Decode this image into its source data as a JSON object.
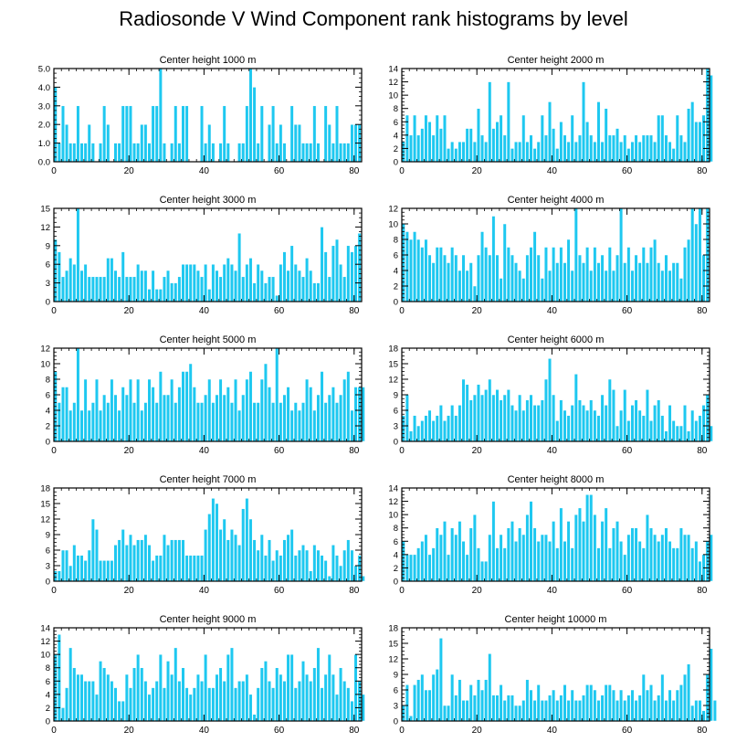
{
  "figure_title": "Radiosonde V Wind Component rank histograms by level",
  "colors": {
    "bar": "#1ec8f0",
    "bar_edge": "#ffffff",
    "axis": "#000000"
  },
  "chart_data": [
    {
      "type": "bar",
      "title": "Center height 1000 m",
      "xlabel": "",
      "ylabel": "",
      "xlim": [
        0,
        82
      ],
      "ylim": [
        0,
        5
      ],
      "x_ticks": [
        0,
        20,
        40,
        60,
        80
      ],
      "y_ticks": [
        0,
        1,
        2,
        3,
        4,
        5
      ],
      "y_tick_labels": [
        "0.0",
        "1.0",
        "2.0",
        "3.0",
        "4.0",
        "5.0"
      ],
      "values": [
        4,
        1,
        3,
        2,
        1,
        1,
        3,
        1,
        1,
        2,
        1,
        0,
        1,
        3,
        2,
        0,
        1,
        1,
        3,
        3,
        3,
        1,
        1,
        2,
        2,
        1,
        3,
        3,
        5,
        1,
        0,
        1,
        3,
        1,
        3,
        3,
        0,
        0,
        0,
        3,
        1,
        2,
        1,
        0,
        1,
        3,
        1,
        0,
        0,
        1,
        1,
        3,
        5,
        4,
        1,
        3,
        0,
        2,
        3,
        1,
        2,
        1,
        0,
        3,
        2,
        2,
        1,
        1,
        1,
        3,
        1,
        0,
        3,
        2,
        1,
        3,
        1,
        1,
        1,
        2,
        2,
        2
      ]
    },
    {
      "type": "bar",
      "title": "Center height 2000 m",
      "xlabel": "",
      "ylabel": "",
      "xlim": [
        0,
        82
      ],
      "ylim": [
        0,
        14
      ],
      "x_ticks": [
        0,
        20,
        40,
        60,
        80
      ],
      "y_ticks": [
        0,
        2,
        4,
        6,
        8,
        10,
        12,
        14
      ],
      "y_tick_labels": [
        "0",
        "2",
        "4",
        "6",
        "8",
        "10",
        "12",
        "14"
      ],
      "values": [
        3,
        7,
        4,
        7,
        4,
        5,
        7,
        6,
        4,
        7,
        5,
        7,
        2,
        3,
        2,
        3,
        3,
        5,
        5,
        3,
        8,
        4,
        3,
        12,
        5,
        6,
        7,
        4,
        12,
        2,
        3,
        3,
        7,
        3,
        4,
        2,
        3,
        7,
        4,
        9,
        5,
        2,
        6,
        4,
        3,
        7,
        3,
        4,
        12,
        6,
        4,
        3,
        9,
        3,
        8,
        4,
        4,
        5,
        3,
        4,
        2,
        3,
        4,
        3,
        4,
        4,
        4,
        3,
        7,
        7,
        4,
        3,
        2,
        7,
        4,
        3,
        8,
        9,
        6,
        6,
        7,
        14,
        13
      ]
    },
    {
      "type": "bar",
      "title": "Center height 3000 m",
      "xlabel": "",
      "ylabel": "",
      "xlim": [
        0,
        82
      ],
      "ylim": [
        0,
        15
      ],
      "x_ticks": [
        0,
        20,
        40,
        60,
        80
      ],
      "y_ticks": [
        0,
        3,
        6,
        9,
        12,
        15
      ],
      "y_tick_labels": [
        "0",
        "3",
        "6",
        "9",
        "12",
        "15"
      ],
      "values": [
        10,
        8,
        4,
        5,
        7,
        6,
        15,
        5,
        6,
        4,
        4,
        4,
        4,
        4,
        7,
        7,
        5,
        4,
        8,
        4,
        4,
        4,
        6,
        5,
        5,
        2,
        5,
        2,
        2,
        4,
        5,
        3,
        3,
        4,
        6,
        6,
        6,
        6,
        5,
        4,
        6,
        2,
        6,
        5,
        4,
        6,
        7,
        6,
        5,
        11,
        4,
        6,
        7,
        3,
        6,
        5,
        3,
        4,
        4,
        1,
        6,
        8,
        5,
        9,
        6,
        5,
        4,
        7,
        5,
        3,
        3,
        12,
        8,
        4,
        9,
        10,
        6,
        4,
        9,
        8,
        9,
        11
      ]
    },
    {
      "type": "bar",
      "title": "Center height 4000 m",
      "xlabel": "",
      "ylabel": "",
      "xlim": [
        0,
        82
      ],
      "ylim": [
        0,
        12
      ],
      "x_ticks": [
        0,
        20,
        40,
        60,
        80
      ],
      "y_ticks": [
        0,
        2,
        4,
        6,
        8,
        10,
        12
      ],
      "y_tick_labels": [
        "0",
        "2",
        "4",
        "6",
        "8",
        "10",
        "12"
      ],
      "values": [
        10,
        9,
        8,
        9,
        8,
        7,
        8,
        6,
        5,
        7,
        7,
        6,
        5,
        7,
        6,
        4,
        6,
        4,
        5,
        2,
        6,
        9,
        7,
        6,
        11,
        6,
        3,
        10,
        7,
        6,
        5,
        4,
        3,
        6,
        7,
        9,
        6,
        3,
        7,
        4,
        7,
        5,
        7,
        5,
        8,
        4,
        12,
        6,
        5,
        7,
        4,
        7,
        5,
        6,
        4,
        7,
        4,
        6,
        12,
        5,
        7,
        4,
        6,
        5,
        7,
        5,
        7,
        8,
        5,
        4,
        6,
        4,
        5,
        5,
        3,
        7,
        8,
        12,
        10,
        12,
        6,
        12
      ]
    },
    {
      "type": "bar",
      "title": "Center height 5000 m",
      "xlabel": "",
      "ylabel": "",
      "xlim": [
        0,
        82
      ],
      "ylim": [
        0,
        12
      ],
      "x_ticks": [
        0,
        20,
        40,
        60,
        80
      ],
      "y_ticks": [
        0,
        2,
        4,
        6,
        8,
        10,
        12
      ],
      "y_tick_labels": [
        "0",
        "2",
        "4",
        "6",
        "8",
        "10",
        "12"
      ],
      "values": [
        9,
        5,
        7,
        7,
        4,
        5,
        12,
        4,
        8,
        4,
        5,
        8,
        4,
        6,
        5,
        8,
        6,
        4,
        7,
        6,
        8,
        5,
        8,
        4,
        5,
        8,
        7,
        5,
        9,
        6,
        6,
        8,
        5,
        7,
        9,
        9,
        10,
        7,
        5,
        5,
        6,
        8,
        5,
        6,
        8,
        6,
        7,
        5,
        8,
        4,
        6,
        8,
        9,
        5,
        5,
        8,
        10,
        7,
        5,
        12,
        5,
        6,
        7,
        4,
        5,
        4,
        5,
        8,
        7,
        4,
        6,
        9,
        5,
        6,
        7,
        5,
        6,
        8,
        9,
        4,
        7,
        7,
        7
      ]
    },
    {
      "type": "bar",
      "title": "Center height 6000 m",
      "xlabel": "",
      "ylabel": "",
      "xlim": [
        0,
        82
      ],
      "ylim": [
        0,
        18
      ],
      "x_ticks": [
        0,
        20,
        40,
        60,
        80
      ],
      "y_ticks": [
        0,
        3,
        6,
        9,
        12,
        15,
        18
      ],
      "y_tick_labels": [
        "0",
        "3",
        "6",
        "9",
        "12",
        "15",
        "18"
      ],
      "values": [
        5,
        9,
        2,
        5,
        3,
        4,
        5,
        6,
        4,
        5,
        7,
        4,
        5,
        7,
        5,
        7,
        12,
        11,
        8,
        9,
        11,
        9,
        10,
        12,
        9,
        10,
        8,
        9,
        10,
        7,
        6,
        9,
        6,
        8,
        9,
        7,
        7,
        8,
        12,
        16,
        9,
        4,
        8,
        6,
        5,
        7,
        13,
        8,
        7,
        6,
        8,
        6,
        5,
        9,
        7,
        12,
        10,
        3,
        6,
        10,
        4,
        7,
        8,
        6,
        5,
        10,
        4,
        7,
        8,
        5,
        2,
        7,
        4,
        3,
        3,
        7,
        2,
        6,
        4,
        5,
        7,
        9,
        3
      ]
    },
    {
      "type": "bar",
      "title": "Center height 7000 m",
      "xlabel": "",
      "ylabel": "",
      "xlim": [
        0,
        82
      ],
      "ylim": [
        0,
        18
      ],
      "x_ticks": [
        0,
        20,
        40,
        60,
        80
      ],
      "y_ticks": [
        0,
        3,
        6,
        9,
        12,
        15,
        18
      ],
      "y_tick_labels": [
        "0",
        "3",
        "6",
        "9",
        "12",
        "15",
        "18"
      ],
      "values": [
        2,
        2,
        6,
        6,
        3,
        7,
        5,
        5,
        4,
        6,
        12,
        10,
        4,
        4,
        4,
        4,
        7,
        8,
        10,
        7,
        9,
        7,
        8,
        8,
        9,
        7,
        4,
        5,
        5,
        9,
        7,
        8,
        8,
        8,
        8,
        5,
        5,
        5,
        5,
        5,
        10,
        13,
        16,
        15,
        10,
        12,
        8,
        10,
        9,
        7,
        14,
        16,
        12,
        8,
        6,
        9,
        5,
        8,
        4,
        6,
        5,
        8,
        9,
        10,
        5,
        6,
        7,
        6,
        2,
        7,
        6,
        5,
        4,
        1,
        7,
        5,
        3,
        6,
        8,
        6,
        3,
        5,
        1
      ]
    },
    {
      "type": "bar",
      "title": "Center height 8000 m",
      "xlabel": "",
      "ylabel": "",
      "xlim": [
        0,
        82
      ],
      "ylim": [
        0,
        14
      ],
      "x_ticks": [
        0,
        20,
        40,
        60,
        80
      ],
      "y_ticks": [
        0,
        2,
        4,
        6,
        8,
        10,
        12,
        14
      ],
      "y_tick_labels": [
        "0",
        "2",
        "4",
        "6",
        "8",
        "10",
        "12",
        "14"
      ],
      "values": [
        6,
        4,
        4,
        4,
        5,
        6,
        7,
        4,
        5,
        8,
        7,
        9,
        4,
        8,
        7,
        9,
        6,
        4,
        8,
        10,
        5,
        3,
        3,
        7,
        12,
        5,
        7,
        5,
        8,
        9,
        6,
        8,
        7,
        10,
        12,
        8,
        6,
        7,
        7,
        6,
        9,
        5,
        11,
        6,
        9,
        5,
        10,
        11,
        9,
        13,
        13,
        10,
        5,
        9,
        11,
        5,
        8,
        9,
        6,
        4,
        7,
        8,
        8,
        6,
        5,
        10,
        8,
        7,
        6,
        7,
        8,
        6,
        5,
        5,
        8,
        7,
        7,
        5,
        6,
        3,
        4,
        6,
        7
      ]
    },
    {
      "type": "bar",
      "title": "Center height 9000 m",
      "xlabel": "",
      "ylabel": "",
      "xlim": [
        0,
        82
      ],
      "ylim": [
        0,
        14
      ],
      "x_ticks": [
        0,
        20,
        40,
        60,
        80
      ],
      "y_ticks": [
        0,
        2,
        4,
        6,
        8,
        10,
        12,
        14
      ],
      "y_tick_labels": [
        "0",
        "2",
        "4",
        "6",
        "8",
        "10",
        "12",
        "14"
      ],
      "values": [
        10,
        13,
        2,
        5,
        11,
        8,
        7,
        7,
        6,
        6,
        6,
        4,
        9,
        8,
        7,
        6,
        5,
        3,
        3,
        7,
        5,
        8,
        10,
        8,
        6,
        4,
        5,
        6,
        10,
        5,
        9,
        7,
        11,
        6,
        8,
        5,
        4,
        5,
        7,
        6,
        10,
        5,
        5,
        7,
        8,
        6,
        10,
        11,
        5,
        6,
        6,
        7,
        4,
        1,
        5,
        8,
        9,
        6,
        5,
        8,
        7,
        6,
        10,
        10,
        5,
        6,
        9,
        7,
        6,
        8,
        11,
        5,
        7,
        10,
        7,
        4,
        8,
        6,
        5,
        3,
        10,
        6,
        4
      ]
    },
    {
      "type": "bar",
      "title": "Center height 10000 m",
      "xlabel": "",
      "ylabel": "",
      "xlim": [
        0,
        82
      ],
      "ylim": [
        0,
        18
      ],
      "x_ticks": [
        0,
        20,
        40,
        60,
        80
      ],
      "y_ticks": [
        0,
        3,
        6,
        9,
        12,
        15,
        18
      ],
      "y_tick_labels": [
        "0",
        "3",
        "6",
        "9",
        "12",
        "15",
        "18"
      ],
      "values": [
        3,
        7,
        1,
        7,
        8,
        9,
        6,
        6,
        9,
        10,
        16,
        3,
        3,
        9,
        5,
        8,
        4,
        4,
        7,
        5,
        8,
        6,
        8,
        13,
        5,
        5,
        7,
        4,
        5,
        5,
        3,
        3,
        4,
        8,
        6,
        4,
        7,
        4,
        4,
        5,
        6,
        4,
        5,
        7,
        4,
        6,
        4,
        4,
        5,
        7,
        7,
        6,
        4,
        5,
        7,
        7,
        6,
        4,
        6,
        4,
        5,
        6,
        4,
        5,
        9,
        6,
        7,
        4,
        5,
        9,
        4,
        6,
        4,
        6,
        7,
        9,
        11,
        3,
        4,
        4,
        2,
        9,
        14,
        4
      ]
    }
  ]
}
